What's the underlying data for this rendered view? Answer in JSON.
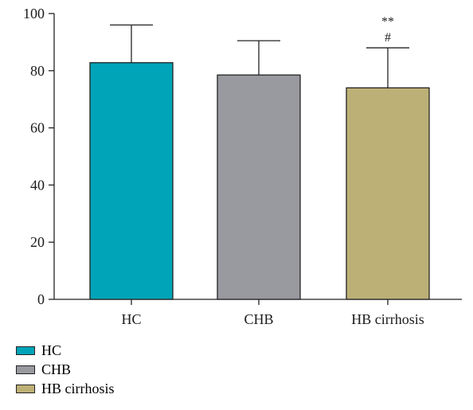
{
  "chart_data": {
    "type": "bar",
    "categories": [
      "HC",
      "CHB",
      "HB cirrhosis"
    ],
    "values": [
      82.8,
      78.5,
      74.0
    ],
    "error_upper": [
      96.0,
      90.5,
      88.0
    ],
    "colors": [
      "#00a4b8",
      "#999a9f",
      "#bdb076"
    ],
    "ylim": [
      0,
      100
    ],
    "yticks": [
      "0",
      "20",
      "40",
      "60",
      "80",
      "100"
    ],
    "annotations": [
      {
        "category": "HB cirrhosis",
        "lines": [
          "**",
          "#"
        ]
      }
    ],
    "legend": {
      "position": "bottom-left",
      "entries": [
        "HC",
        "CHB",
        "HB cirrhosis"
      ]
    },
    "grid": false
  }
}
